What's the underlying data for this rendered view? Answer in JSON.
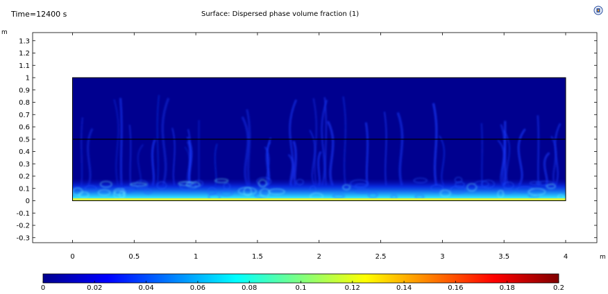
{
  "header": {
    "time_label": "Time=12400 s",
    "title": "Surface: Dispersed phase volume fraction (1)"
  },
  "logo_icon": "comsol-logo-icon",
  "chart_data": {
    "type": "heatmap",
    "title": "Surface: Dispersed phase volume fraction (1)",
    "time": "Time=12400 s",
    "x_unit": "m",
    "y_unit": "m",
    "xlim": [
      -0.35,
      4.3
    ],
    "ylim": [
      -0.37,
      1.4
    ],
    "x_ticks": [
      "0",
      "0.5",
      "1",
      "1.5",
      "2",
      "2.5",
      "3",
      "3.5",
      "4"
    ],
    "x_tick_values": [
      0,
      0.5,
      1,
      1.5,
      2,
      2.5,
      3,
      3.5,
      4
    ],
    "y_ticks": [
      "1.3",
      "1.2",
      "1.1",
      "1",
      "0.9",
      "0.8",
      "0.7",
      "0.6",
      "0.5",
      "0.4",
      "0.3",
      "0.2",
      "0.1",
      "0",
      "-0.1",
      "-0.2",
      "-0.3"
    ],
    "y_tick_values": [
      1.3,
      1.2,
      1.1,
      1.0,
      0.9,
      0.8,
      0.7,
      0.6,
      0.5,
      0.4,
      0.3,
      0.2,
      0.1,
      0,
      -0.1,
      -0.2,
      -0.3
    ],
    "domain": {
      "x": [
        0,
        4
      ],
      "y": [
        0,
        1
      ]
    },
    "interface_line_y": 0.5,
    "colorbar": {
      "min": 0,
      "max": 0.2,
      "ticks": [
        "0",
        "0.02",
        "0.04",
        "0.06",
        "0.08",
        "0.1",
        "0.12",
        "0.14",
        "0.16",
        "0.18",
        "0.2"
      ],
      "tick_values": [
        0,
        0.02,
        0.04,
        0.06,
        0.08,
        0.1,
        0.12,
        0.14,
        0.16,
        0.18,
        0.2
      ],
      "colormap": "jet"
    }
  }
}
